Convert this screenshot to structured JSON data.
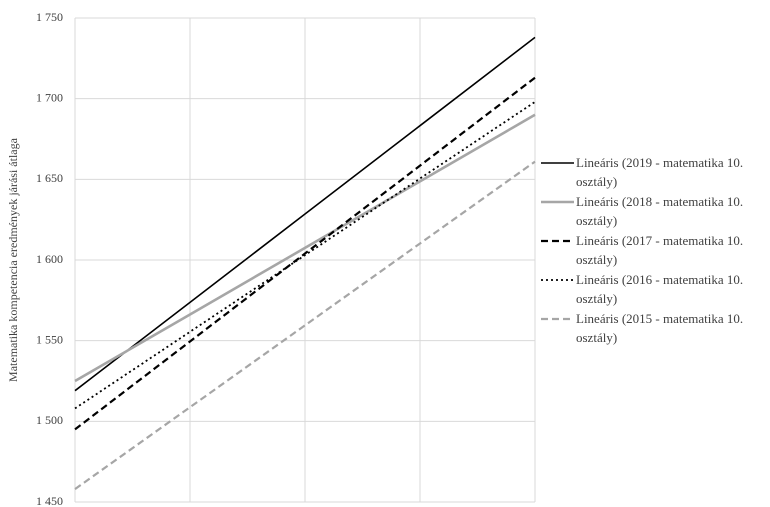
{
  "chart_data": {
    "type": "line",
    "y_axis_label": "Matematika kompetencia eredmények járási átlaga",
    "categories": [
      null,
      null,
      null,
      null,
      null
    ],
    "ylim": [
      1450,
      1750
    ],
    "yticks": [
      {
        "value": 1450,
        "label": "1 450"
      },
      {
        "value": 1500,
        "label": "1 500"
      },
      {
        "value": 1550,
        "label": "1 550"
      },
      {
        "value": 1600,
        "label": "1 600"
      },
      {
        "value": 1650,
        "label": "1 650"
      },
      {
        "value": 1700,
        "label": "1 700"
      },
      {
        "value": 1750,
        "label": "1 750"
      }
    ],
    "grid": true,
    "legend": "right",
    "series": [
      {
        "name": "Lineáris (2019 - matematika 10. osztály)",
        "color": "#000000",
        "style": "solid",
        "values": [
          1519,
          1573.75,
          1628.5,
          1683.25,
          1738
        ]
      },
      {
        "name": "Lineáris (2018 - matematika 10. osztály)",
        "color": "#a6a6a6",
        "style": "thick",
        "values": [
          1525,
          1566.25,
          1607.5,
          1648.75,
          1690
        ]
      },
      {
        "name": "Lineáris (2017 - matematika 10. osztály)",
        "color": "#000000",
        "style": "dashed",
        "values": [
          1495,
          1549.5,
          1604,
          1658.5,
          1713
        ]
      },
      {
        "name": "Lineáris (2016 - matematika 10. osztály)",
        "color": "#000000",
        "style": "dotted",
        "values": [
          1508,
          1555.5,
          1603,
          1650.5,
          1698
        ]
      },
      {
        "name": "Lineáris (2015 - matematika 10. osztály)",
        "color": "#a6a6a6",
        "style": "dashed",
        "values": [
          1458,
          1508.75,
          1559.5,
          1610.25,
          1661
        ]
      }
    ]
  }
}
